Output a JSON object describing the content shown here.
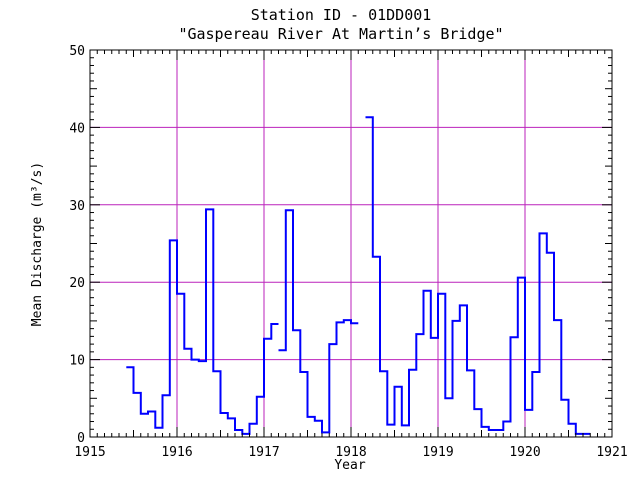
{
  "chart_data": {
    "type": "line",
    "style": "step",
    "title": "Station ID - 01DD001",
    "subtitle": "\"Gaspereau River At Martin’s Bridge\"",
    "xlabel": "Year",
    "ylabel": "Mean Discharge (m³/s)",
    "xlim": [
      1915,
      1921
    ],
    "ylim": [
      0,
      50
    ],
    "x_ticks": [
      "1915",
      "1916",
      "1917",
      "1918",
      "1919",
      "1920",
      "1921"
    ],
    "y_ticks": [
      "0",
      "10",
      "20",
      "30",
      "40",
      "50"
    ],
    "grid": true,
    "colors": {
      "series": "#0000ff",
      "grid": "#bb22bb",
      "axes": "#000000"
    },
    "series": [
      {
        "segments": [
          {
            "x_start": 1915.417,
            "values": [
              9.0,
              5.7,
              3.0,
              3.3,
              1.2,
              5.4,
              25.4,
              18.5,
              11.4,
              10.0,
              9.8,
              29.4,
              8.5,
              3.1,
              2.4,
              0.9,
              0.4,
              1.7,
              5.2,
              12.7,
              14.6
            ]
          },
          {
            "x_start": 1917.167,
            "values": [
              11.2,
              29.3,
              13.8,
              8.4,
              2.6,
              2.1,
              0.6,
              12.0,
              14.8,
              15.1,
              14.7
            ]
          },
          {
            "x_start": 1918.167,
            "values": [
              41.3,
              23.3,
              8.5,
              1.6,
              6.5,
              1.5,
              8.7,
              13.3,
              18.9,
              12.8,
              18.5,
              5.0,
              15.0,
              17.0,
              8.6,
              3.6,
              1.3,
              0.9,
              0.9,
              2.0,
              12.9,
              20.6,
              3.5,
              8.4,
              26.3,
              23.8,
              15.1,
              4.8,
              1.7,
              0.4,
              0.4
            ]
          }
        ]
      }
    ]
  }
}
